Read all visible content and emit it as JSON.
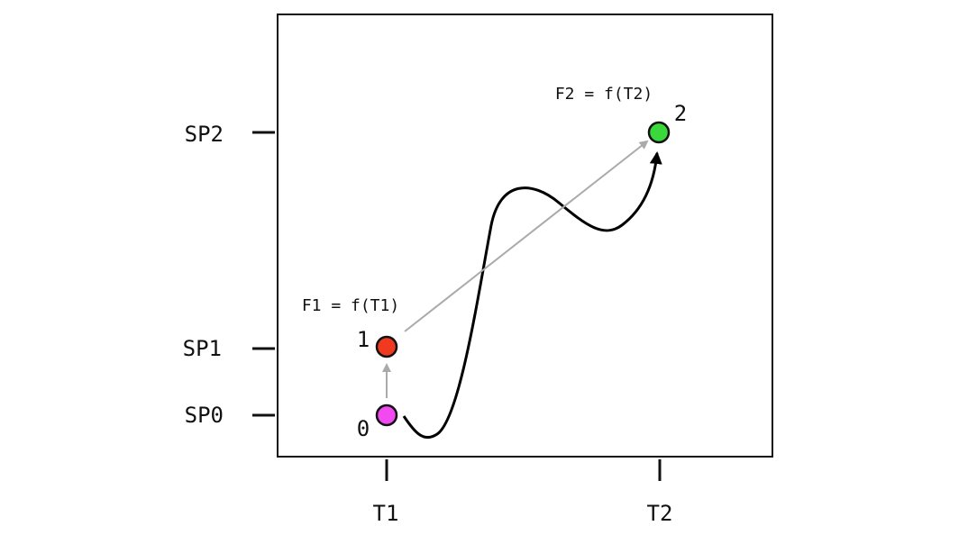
{
  "axes": {
    "y_labels": [
      "SP2",
      "SP1",
      "SP0"
    ],
    "x_labels": [
      "T1",
      "T2"
    ]
  },
  "nodes": [
    {
      "label": "0"
    },
    {
      "label": "1"
    },
    {
      "label": "2"
    }
  ],
  "annotations": [
    "F1 = f(T1)",
    "F2 = f(T2)"
  ]
}
